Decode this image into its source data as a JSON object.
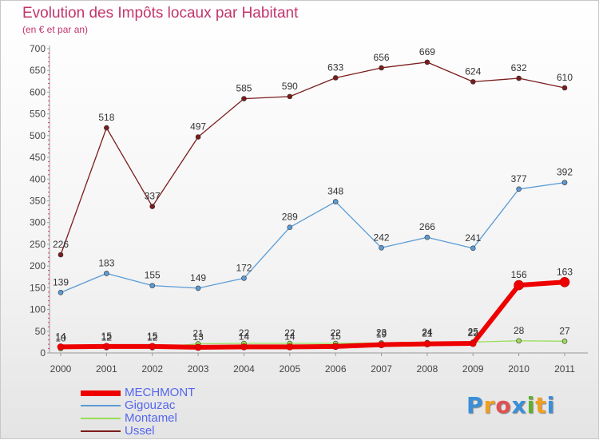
{
  "header": {
    "title": "Evolution des Impôts locaux par Habitant",
    "subtitle": "(en € et par an)"
  },
  "chart_data": {
    "type": "line",
    "title": "Evolution des Impôts locaux par Habitant",
    "subtitle": "(en € et par an)",
    "xlabel": "",
    "ylabel": "",
    "x": [
      "2000",
      "2001",
      "2002",
      "2003",
      "2004",
      "2005",
      "2006",
      "2007",
      "2008",
      "2009",
      "2010",
      "2011"
    ],
    "ylim": [
      0,
      700
    ],
    "yticks": [
      0,
      50,
      100,
      150,
      200,
      250,
      300,
      350,
      400,
      450,
      500,
      550,
      600,
      650,
      700
    ],
    "grid": false,
    "legend_position": "bottom-left",
    "series": [
      {
        "name": "MECHMONT",
        "color": "#ee0000",
        "values": [
          14,
          15,
          15,
          13,
          14,
          14,
          15,
          19,
          21,
          22,
          156,
          163
        ]
      },
      {
        "name": "Gigouzac",
        "color": "#5b9bd5",
        "values": [
          139,
          183,
          155,
          149,
          172,
          289,
          348,
          242,
          266,
          241,
          377,
          392
        ]
      },
      {
        "name": "Montamel",
        "color": "#99dd55",
        "values": [
          10,
          12,
          12,
          21,
          22,
          22,
          22,
          23,
          24,
          25,
          28,
          27
        ]
      },
      {
        "name": "Ussel",
        "color": "#7b1c1c",
        "values": [
          226,
          518,
          337,
          497,
          585,
          590,
          633,
          656,
          669,
          624,
          632,
          610
        ]
      }
    ],
    "point_labels": {
      "MECHMONT": [
        "14",
        "15",
        "15",
        "13",
        "14",
        "14",
        "15",
        "19",
        "21",
        "22",
        "156",
        "163"
      ],
      "Gigouzac": [
        "139",
        "183",
        "155",
        "149",
        "172",
        "289",
        "348",
        "242",
        "266",
        "241",
        "377",
        "392"
      ],
      "Montamel": [
        "10",
        "12",
        "12",
        "21",
        "22",
        "22",
        "22",
        "23",
        "24",
        "25",
        "28",
        "27"
      ],
      "Ussel": [
        "226",
        "518",
        "337",
        "497",
        "585",
        "590",
        "633",
        "656",
        "669",
        "624",
        "632",
        "610"
      ]
    }
  },
  "legend": {
    "items": [
      {
        "label": "MECHMONT",
        "color": "#ee0000"
      },
      {
        "label": "Gigouzac",
        "color": "#5b9bd5"
      },
      {
        "label": "Montamel",
        "color": "#99dd55"
      },
      {
        "label": "Ussel",
        "color": "#7b1c1c"
      }
    ]
  },
  "brand": {
    "letters": [
      "P",
      "r",
      "o",
      "x",
      "i",
      "t",
      "i"
    ],
    "colors": [
      "#3a8fd8",
      "#f0a020",
      "#e05050",
      "#3a8fd8",
      "#60b030",
      "#f0a020",
      "#3a8fd8"
    ]
  }
}
